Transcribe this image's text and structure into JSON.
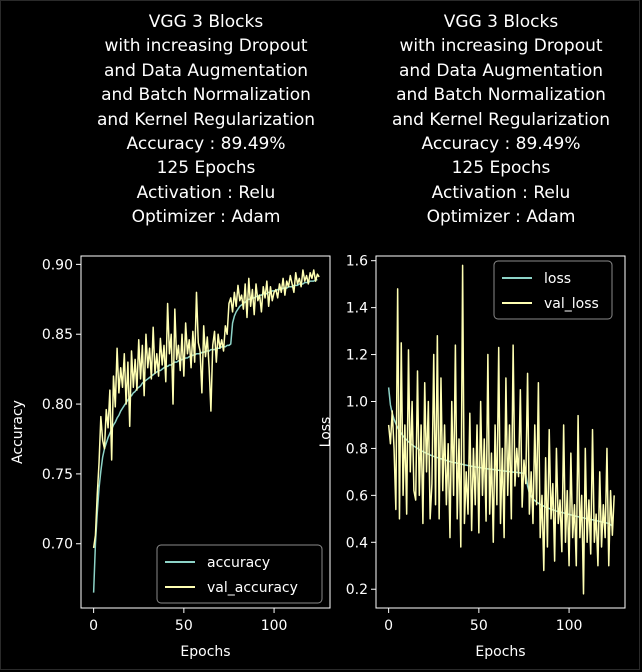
{
  "chart_data": [
    {
      "type": "line",
      "title_lines": [
        "VGG 3 Blocks",
        "with increasing Dropout",
        "and Data Augmentation",
        "and Batch Normalization",
        "and Kernel Regularization",
        "Accuracy : 89.49%",
        "125 Epochs",
        "Activation : Relu",
        "Optimizer : Adam"
      ],
      "xlabel": "Epochs",
      "ylabel": "Accuracy",
      "xlim": [
        -7,
        131
      ],
      "ylim": [
        0.654,
        0.906
      ],
      "xticks": [
        "0",
        "50",
        "100"
      ],
      "yticks": [
        "0.70",
        "0.75",
        "0.80",
        "0.85",
        "0.90"
      ],
      "legend_position": "lower right",
      "colors": {
        "accuracy": "#8dd3c7",
        "val_accuracy": "#ffffb3"
      },
      "series": [
        {
          "name": "accuracy",
          "values": [
            0.665,
            0.7,
            0.722,
            0.74,
            0.752,
            0.762,
            0.768,
            0.772,
            0.776,
            0.779,
            0.782,
            0.785,
            0.787,
            0.79,
            0.792,
            0.795,
            0.797,
            0.799,
            0.801,
            0.803,
            0.805,
            0.806,
            0.808,
            0.809,
            0.811,
            0.812,
            0.813,
            0.815,
            0.816,
            0.817,
            0.818,
            0.819,
            0.82,
            0.821,
            0.822,
            0.823,
            0.824,
            0.824,
            0.825,
            0.826,
            0.827,
            0.827,
            0.828,
            0.828,
            0.829,
            0.83,
            0.83,
            0.831,
            0.831,
            0.832,
            0.832,
            0.833,
            0.833,
            0.834,
            0.834,
            0.835,
            0.835,
            0.836,
            0.836,
            0.836,
            0.837,
            0.837,
            0.838,
            0.838,
            0.838,
            0.839,
            0.839,
            0.839,
            0.84,
            0.84,
            0.84,
            0.841,
            0.841,
            0.841,
            0.842,
            0.842,
            0.843,
            0.858,
            0.863,
            0.866,
            0.868,
            0.87,
            0.871,
            0.872,
            0.873,
            0.874,
            0.875,
            0.875,
            0.876,
            0.876,
            0.877,
            0.877,
            0.878,
            0.878,
            0.879,
            0.879,
            0.879,
            0.88,
            0.88,
            0.881,
            0.881,
            0.881,
            0.882,
            0.882,
            0.882,
            0.883,
            0.883,
            0.883,
            0.884,
            0.884,
            0.884,
            0.885,
            0.885,
            0.885,
            0.886,
            0.886,
            0.886,
            0.887,
            0.887,
            0.887,
            0.888,
            0.888,
            0.888,
            0.889,
            0.889
          ]
        },
        {
          "name": "val_accuracy",
          "values": [
            0.697,
            0.706,
            0.735,
            0.758,
            0.791,
            0.774,
            0.768,
            0.796,
            0.783,
            0.81,
            0.76,
            0.82,
            0.798,
            0.84,
            0.808,
            0.826,
            0.812,
            0.836,
            0.8,
            0.83,
            0.784,
            0.838,
            0.812,
            0.832,
            0.81,
            0.846,
            0.818,
            0.842,
            0.806,
            0.85,
            0.826,
            0.84,
            0.818,
            0.855,
            0.822,
            0.836,
            0.82,
            0.847,
            0.828,
            0.842,
            0.816,
            0.872,
            0.836,
            0.85,
            0.8,
            0.868,
            0.832,
            0.842,
            0.824,
            0.85,
            0.82,
            0.858,
            0.836,
            0.846,
            0.826,
            0.852,
            0.83,
            0.88,
            0.844,
            0.838,
            0.808,
            0.856,
            0.834,
            0.848,
            0.826,
            0.795,
            0.842,
            0.852,
            0.83,
            0.85,
            0.84,
            0.846,
            0.838,
            0.856,
            0.85,
            0.872,
            0.876,
            0.866,
            0.88,
            0.87,
            0.885,
            0.874,
            0.878,
            0.868,
            0.886,
            0.862,
            0.89,
            0.87,
            0.882,
            0.864,
            0.886,
            0.874,
            0.878,
            0.866,
            0.884,
            0.876,
            0.888,
            0.87,
            0.884,
            0.874,
            0.88,
            0.882,
            0.876,
            0.886,
            0.88,
            0.89,
            0.878,
            0.888,
            0.884,
            0.892,
            0.886,
            0.88,
            0.894,
            0.886,
            0.89,
            0.884,
            0.896,
            0.888,
            0.892,
            0.886,
            0.894,
            0.89,
            0.896,
            0.888,
            0.893,
            0.891
          ]
        }
      ]
    },
    {
      "type": "line",
      "title_lines": [
        "VGG 3 Blocks",
        "with increasing Dropout",
        "and Data Augmentation",
        "and Batch Normalization",
        "and Kernel Regularization",
        "Accuracy : 89.49%",
        "125 Epochs",
        "Activation : Relu",
        "Optimizer : Adam"
      ],
      "xlabel": "Epochs",
      "ylabel": "Loss",
      "xlim": [
        -7,
        131
      ],
      "ylim": [
        0.12,
        1.62
      ],
      "xticks": [
        "0",
        "50",
        "100"
      ],
      "yticks": [
        "0.2",
        "0.4",
        "0.6",
        "0.8",
        "1.0",
        "1.2",
        "1.4",
        "1.6"
      ],
      "legend_position": "upper right",
      "colors": {
        "loss": "#8dd3c7",
        "val_loss": "#ffffb3"
      },
      "series": [
        {
          "name": "loss",
          "values": [
            1.06,
            0.985,
            0.95,
            0.925,
            0.905,
            0.889,
            0.875,
            0.863,
            0.853,
            0.844,
            0.836,
            0.829,
            0.822,
            0.816,
            0.81,
            0.805,
            0.8,
            0.795,
            0.791,
            0.787,
            0.783,
            0.779,
            0.776,
            0.772,
            0.769,
            0.766,
            0.763,
            0.761,
            0.758,
            0.756,
            0.753,
            0.751,
            0.749,
            0.746,
            0.744,
            0.742,
            0.74,
            0.739,
            0.737,
            0.735,
            0.733,
            0.732,
            0.73,
            0.729,
            0.727,
            0.726,
            0.724,
            0.723,
            0.721,
            0.72,
            0.719,
            0.718,
            0.716,
            0.715,
            0.714,
            0.713,
            0.712,
            0.711,
            0.71,
            0.709,
            0.708,
            0.707,
            0.706,
            0.705,
            0.704,
            0.703,
            0.702,
            0.701,
            0.7,
            0.699,
            0.699,
            0.698,
            0.697,
            0.696,
            0.695,
            0.695,
            0.694,
            0.64,
            0.61,
            0.595,
            0.585,
            0.578,
            0.572,
            0.566,
            0.562,
            0.558,
            0.554,
            0.55,
            0.547,
            0.544,
            0.541,
            0.538,
            0.536,
            0.533,
            0.531,
            0.529,
            0.527,
            0.525,
            0.523,
            0.521,
            0.519,
            0.517,
            0.515,
            0.513,
            0.511,
            0.509,
            0.508,
            0.506,
            0.504,
            0.502,
            0.501,
            0.499,
            0.497,
            0.496,
            0.494,
            0.492,
            0.491,
            0.489,
            0.487,
            0.486,
            0.484,
            0.482,
            0.48,
            0.475,
            0.47
          ]
        },
        {
          "name": "val_loss",
          "values": [
            0.9,
            0.82,
            0.96,
            0.8,
            0.54,
            1.48,
            0.5,
            1.25,
            0.6,
            0.9,
            0.52,
            1.22,
            0.7,
            1.0,
            0.62,
            0.58,
            1.13,
            0.6,
            0.9,
            0.48,
            1.08,
            0.7,
            1.0,
            0.5,
            0.65,
            1.2,
            0.56,
            1.28,
            0.5,
            1.1,
            0.62,
            0.9,
            0.56,
            0.82,
            0.42,
            1.0,
            0.6,
            1.24,
            0.5,
            0.84,
            0.38,
            1.58,
            0.48,
            0.7,
            0.52,
            0.95,
            0.45,
            0.8,
            0.56,
            0.9,
            0.44,
            1.0,
            0.6,
            0.84,
            0.49,
            1.2,
            0.52,
            0.78,
            0.4,
            0.9,
            0.56,
            1.23,
            0.48,
            0.8,
            0.42,
            1.1,
            0.6,
            0.9,
            0.5,
            1.24,
            0.64,
            0.8,
            0.68,
            1.05,
            0.55,
            0.75,
            0.65,
            1.12,
            0.52,
            0.7,
            0.48,
            0.9,
            0.56,
            1.08,
            0.42,
            0.6,
            0.28,
            0.76,
            0.38,
            0.88,
            0.5,
            0.65,
            0.32,
            0.8,
            0.48,
            0.58,
            0.36,
            0.9,
            0.4,
            0.62,
            0.3,
            0.78,
            0.42,
            0.56,
            0.3,
            0.94,
            0.42,
            0.6,
            0.18,
            0.8,
            0.4,
            0.58,
            0.35,
            0.88,
            0.4,
            0.52,
            0.3,
            0.7,
            0.38,
            0.56,
            0.42,
            0.8,
            0.3,
            0.62,
            0.43,
            0.6
          ]
        }
      ]
    }
  ]
}
